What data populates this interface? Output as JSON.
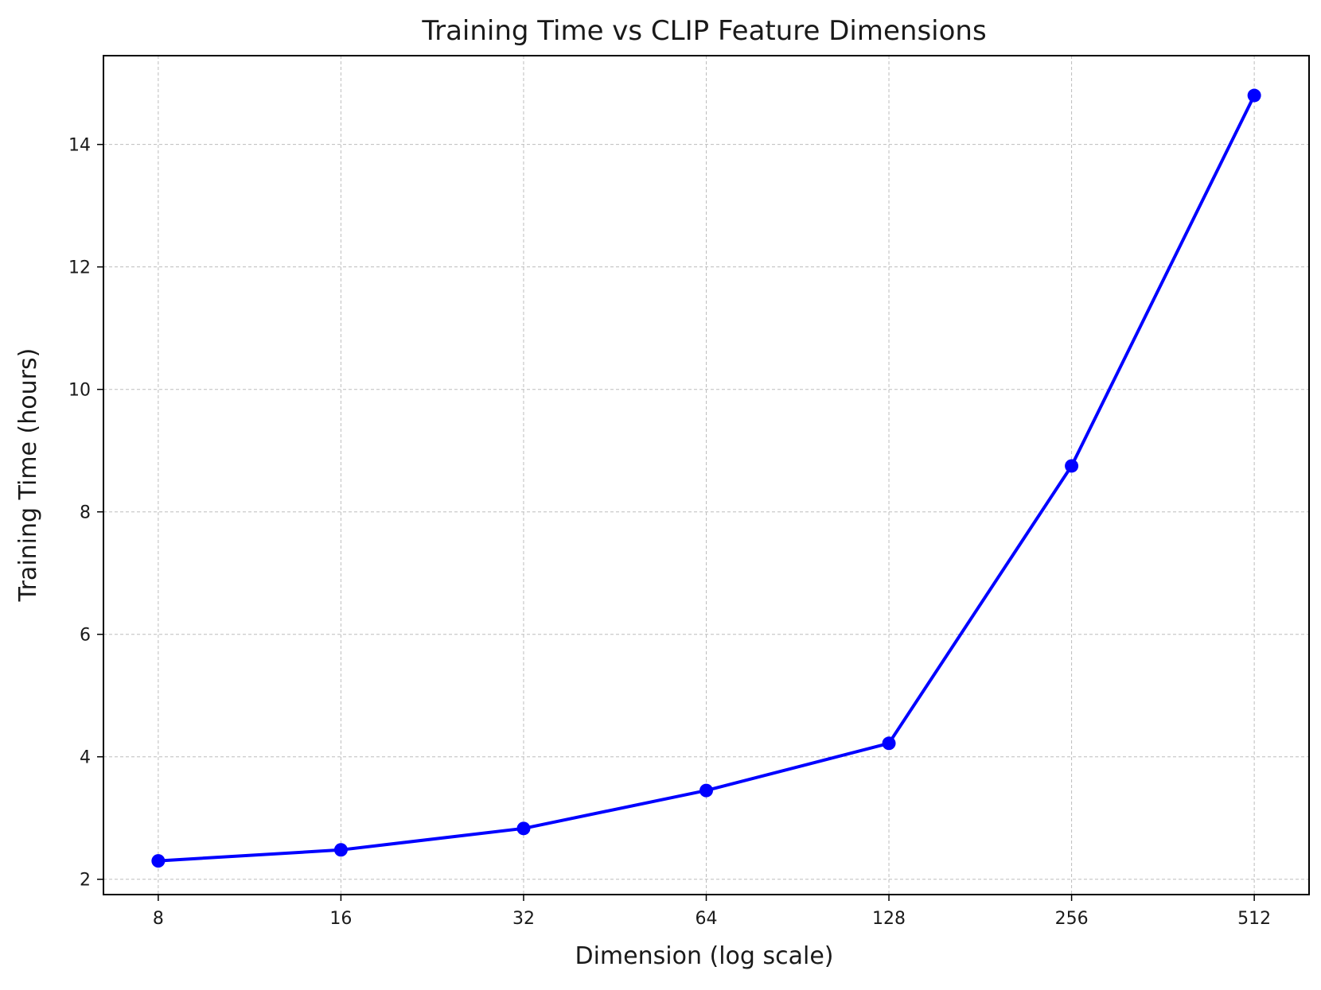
{
  "chart_data": {
    "type": "line",
    "title": "Training Time vs CLIP Feature Dimensions",
    "xlabel": "Dimension (log scale)",
    "ylabel": "Training Time (hours)",
    "x_scale": "log2",
    "x": [
      8,
      16,
      32,
      64,
      128,
      256,
      512
    ],
    "series": [
      {
        "values": [
          2.3,
          2.48,
          2.83,
          3.45,
          4.22,
          8.75,
          14.8
        ],
        "color": "#0000ff",
        "marker": "circle"
      }
    ],
    "xticks": [
      "8",
      "16",
      "32",
      "64",
      "128",
      "256",
      "512"
    ],
    "yticks": [
      2,
      4,
      6,
      8,
      10,
      12,
      14
    ],
    "ylim": [
      1.75,
      15.45
    ],
    "grid": true
  }
}
